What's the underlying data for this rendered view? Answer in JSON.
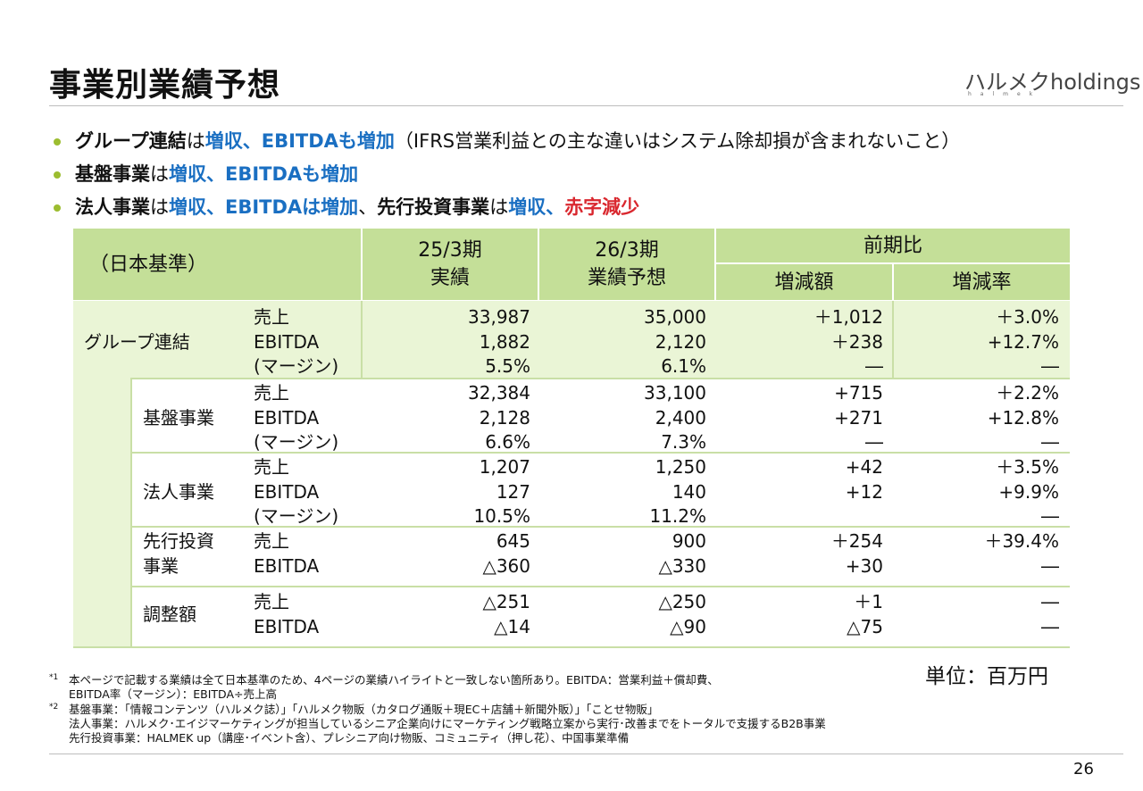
{
  "title": "事業別業績予想",
  "logo": {
    "text": "ハルメクholdings",
    "sub": "halmek"
  },
  "bullets": [
    [
      {
        "t": "グループ連結",
        "s": "b"
      },
      {
        "t": "は",
        "s": ""
      },
      {
        "t": "増収、EBITDAも増加",
        "s": "blue"
      },
      {
        "t": "（IFRS営業利益との主な違いはシステム除却損が含まれないこと）",
        "s": ""
      }
    ],
    [
      {
        "t": "基盤事業",
        "s": "b"
      },
      {
        "t": "は",
        "s": ""
      },
      {
        "t": "増収、EBITDAも増加",
        "s": "blue"
      }
    ],
    [
      {
        "t": "法人事業",
        "s": "b"
      },
      {
        "t": "は",
        "s": ""
      },
      {
        "t": "増収、EBITDAは増加",
        "s": "blue"
      },
      {
        "t": "、",
        "s": ""
      },
      {
        "t": "先行投資事業",
        "s": "b"
      },
      {
        "t": "は",
        "s": ""
      },
      {
        "t": "増収、",
        "s": "blue"
      },
      {
        "t": "赤字減少",
        "s": "red"
      }
    ]
  ],
  "table": {
    "header": {
      "basis": "（日本基準）",
      "col_actual_1": "25/3期",
      "col_actual_2": "実績",
      "col_forecast_1": "26/3期",
      "col_forecast_2": "業績予想",
      "col_yoy": "前期比",
      "col_diff": "増減額",
      "col_rate": "増減率"
    },
    "rows": [
      {
        "segment": [
          "グループ連結"
        ],
        "metrics": [
          "売上",
          "EBITDA",
          "(マージン)"
        ],
        "actual": [
          "33,987",
          "1,882",
          "5.5%"
        ],
        "forecast": [
          "35,000",
          "2,120",
          "6.1%"
        ],
        "diff": [
          "＋1,012",
          "＋238",
          "―"
        ],
        "rate": [
          "＋3.0%",
          "+12.7%",
          "―"
        ]
      },
      {
        "segment": [
          "基盤事業"
        ],
        "metrics": [
          "売上",
          "EBITDA",
          "(マージン)"
        ],
        "actual": [
          "32,384",
          "2,128",
          "6.6%"
        ],
        "forecast": [
          "33,100",
          "2,400",
          "7.3%"
        ],
        "diff": [
          "+715",
          "+271",
          "―"
        ],
        "rate": [
          "＋2.2%",
          "+12.8%",
          "―"
        ]
      },
      {
        "segment": [
          "法人事業"
        ],
        "metrics": [
          "売上",
          "EBITDA",
          "(マージン)"
        ],
        "actual": [
          "1,207",
          "127",
          "10.5%"
        ],
        "forecast": [
          "1,250",
          "140",
          "11.2%"
        ],
        "diff": [
          "+42",
          "+12",
          ""
        ],
        "rate": [
          "＋3.5%",
          "+9.9%",
          "―"
        ]
      },
      {
        "segment": [
          "先行投資",
          "事業"
        ],
        "metrics": [
          "売上",
          "EBITDA"
        ],
        "actual": [
          "645",
          "△360"
        ],
        "forecast": [
          "900",
          "△330"
        ],
        "diff": [
          "＋254",
          "+30"
        ],
        "rate": [
          "＋39.4%",
          "―"
        ]
      },
      {
        "segment": [
          "調整額"
        ],
        "metrics": [
          "売上",
          "EBITDA"
        ],
        "actual": [
          "△251",
          "△14"
        ],
        "forecast": [
          "△250",
          "△90"
        ],
        "diff": [
          "＋1",
          "△75"
        ],
        "rate": [
          "―",
          "―"
        ]
      }
    ]
  },
  "footnotes": {
    "n1_mark": "*1",
    "n1_line1": "本ページで記載する業績は全て日本基準のため、4ページの業績ハイライトと一致しない箇所あり。EBITDA：営業利益＋償却費、",
    "n1_line2": "EBITDA率（マージン）：EBITDA÷売上高",
    "n2_mark": "*2",
    "n2_line1": "基盤事業：「情報コンテンツ（ハルメク誌）」「ハルメク物販（カタログ通販＋現EC＋店舗＋新聞外販）」「ことせ物販」",
    "n2_line2": "法人事業：ハルメク･エイジマーケティングが担当しているシニア企業向けにマーケティング戦略立案から実行･改善までをトータルで支援するB2B事業",
    "n2_line3": "先行投資事業：HALMEK up（講座･イベント含）、プレシニア向け物販、コミュニティ（押し花）、中国事業準備"
  },
  "unit": "単位：百万円",
  "page_number": "26",
  "colors": {
    "header_green": "#c4df98",
    "group_row_green": "#eaf5d6",
    "bullet_green": "#9cbd30",
    "accent_blue": "#1a6fc2",
    "accent_red": "#d9272e"
  }
}
